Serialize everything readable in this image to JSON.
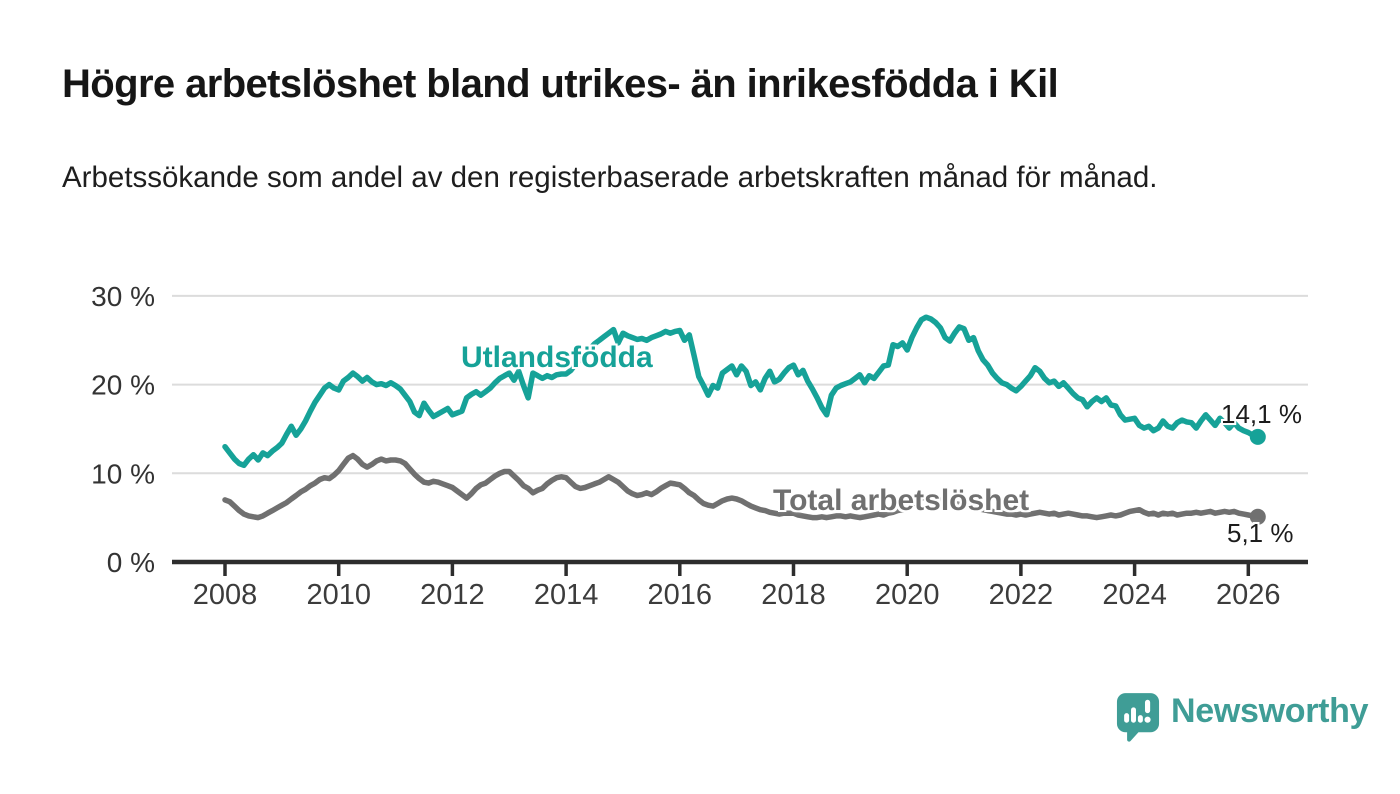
{
  "header": {
    "title": "Högre arbetslöshet bland utrikes- än inrikesfödda i Kil",
    "subtitle": "Arbetssökande som andel av den registerbaserade arbetskraften månad för månad."
  },
  "footer": {
    "brand": "Newsworthy",
    "brand_color": "#3f9d96"
  },
  "chart_data": {
    "type": "line",
    "frequency": "monthly",
    "x_start": "2008-01",
    "x_end": "2026-03",
    "grid": true,
    "x_axis": {
      "start_year": 2008,
      "tick_years": [
        2008,
        2010,
        2012,
        2014,
        2016,
        2018,
        2020,
        2022,
        2024,
        2026
      ]
    },
    "y_axis": {
      "min": 0,
      "max": 30,
      "unit": "%",
      "ticks": [
        {
          "value": 30,
          "label": "30 %"
        },
        {
          "value": 20,
          "label": "20 %"
        },
        {
          "value": 10,
          "label": "10 %"
        },
        {
          "value": 0,
          "label": "0 %"
        }
      ]
    },
    "series": [
      {
        "name": "Utlandsfödda",
        "color": "#16a298",
        "end_label": "14,1 %",
        "end_value": 14.1,
        "values": [
          13.0,
          12.3,
          11.6,
          11.1,
          10.9,
          11.6,
          12.1,
          11.5,
          12.3,
          12.0,
          12.5,
          12.9,
          13.4,
          14.4,
          15.3,
          14.3,
          15.0,
          15.9,
          17.0,
          18.0,
          18.8,
          19.6,
          20.0,
          19.6,
          19.4,
          20.4,
          20.8,
          21.3,
          20.9,
          20.4,
          20.8,
          20.3,
          20.0,
          20.1,
          19.9,
          20.2,
          19.9,
          19.5,
          18.8,
          18.1,
          16.9,
          16.5,
          17.9,
          17.1,
          16.4,
          16.7,
          17.0,
          17.3,
          16.6,
          16.8,
          17.0,
          18.5,
          18.9,
          19.2,
          18.8,
          19.2,
          19.6,
          20.2,
          20.7,
          21.0,
          21.3,
          20.5,
          21.5,
          19.9,
          18.5,
          21.3,
          21.0,
          20.7,
          21.0,
          20.8,
          21.1,
          21.2,
          21.2,
          21.6,
          22.3,
          22.9,
          23.5,
          24.0,
          24.6,
          25.0,
          25.4,
          25.8,
          26.2,
          24.7,
          25.8,
          25.5,
          25.3,
          25.1,
          25.2,
          25.0,
          25.3,
          25.5,
          25.7,
          26.0,
          25.8,
          26.0,
          26.1,
          25.0,
          25.6,
          23.3,
          20.9,
          19.9,
          18.8,
          19.9,
          19.6,
          21.3,
          21.7,
          22.1,
          21.1,
          22.1,
          21.5,
          19.9,
          20.3,
          19.4,
          20.7,
          21.5,
          20.3,
          20.6,
          21.3,
          21.9,
          22.2,
          21.1,
          21.6,
          20.4,
          19.5,
          18.5,
          17.4,
          16.6,
          18.8,
          19.6,
          19.9,
          20.1,
          20.3,
          20.7,
          21.1,
          20.2,
          21.0,
          20.7,
          21.4,
          22.1,
          22.2,
          24.5,
          24.3,
          24.7,
          23.9,
          25.3,
          26.4,
          27.3,
          27.6,
          27.4,
          27.0,
          26.4,
          25.3,
          24.9,
          25.8,
          26.5,
          26.3,
          25.0,
          25.3,
          23.8,
          22.8,
          22.2,
          21.3,
          20.7,
          20.2,
          20.0,
          19.6,
          19.3,
          19.8,
          20.4,
          21.0,
          21.9,
          21.5,
          20.7,
          20.2,
          20.4,
          19.8,
          20.2,
          19.6,
          19.0,
          18.5,
          18.3,
          17.5,
          18.1,
          18.5,
          18.1,
          18.5,
          17.7,
          17.6,
          16.6,
          16.0,
          16.1,
          16.2,
          15.4,
          15.1,
          15.3,
          14.8,
          15.1,
          15.9,
          15.3,
          15.1,
          15.7,
          16.0,
          15.8,
          15.7,
          15.1,
          15.9,
          16.6,
          16.0,
          15.4,
          16.2,
          15.7,
          15.1,
          15.7,
          15.1,
          14.8,
          14.6,
          14.3,
          14.1
        ]
      },
      {
        "name": "Total arbetslöshet",
        "color": "#707070",
        "end_label": "5,1 %",
        "end_value": 5.1,
        "values": [
          7.0,
          6.8,
          6.3,
          5.8,
          5.4,
          5.2,
          5.1,
          5.0,
          5.2,
          5.5,
          5.8,
          6.1,
          6.4,
          6.7,
          7.1,
          7.5,
          7.9,
          8.2,
          8.6,
          8.9,
          9.3,
          9.5,
          9.4,
          9.8,
          10.3,
          11.0,
          11.7,
          12.0,
          11.6,
          11.0,
          10.7,
          11.0,
          11.4,
          11.6,
          11.4,
          11.5,
          11.5,
          11.4,
          11.1,
          10.5,
          9.9,
          9.4,
          9.0,
          8.9,
          9.1,
          9.0,
          8.8,
          8.6,
          8.4,
          8.0,
          7.6,
          7.2,
          7.7,
          8.3,
          8.7,
          8.9,
          9.3,
          9.7,
          10.0,
          10.2,
          10.2,
          9.7,
          9.2,
          8.6,
          8.3,
          7.8,
          8.1,
          8.3,
          8.8,
          9.2,
          9.5,
          9.6,
          9.5,
          9.0,
          8.5,
          8.3,
          8.4,
          8.6,
          8.8,
          9.0,
          9.3,
          9.6,
          9.3,
          9.0,
          8.5,
          8.0,
          7.7,
          7.5,
          7.6,
          7.8,
          7.6,
          7.9,
          8.3,
          8.6,
          8.9,
          8.8,
          8.7,
          8.3,
          7.8,
          7.5,
          7.0,
          6.6,
          6.4,
          6.3,
          6.6,
          6.9,
          7.1,
          7.2,
          7.1,
          6.9,
          6.6,
          6.3,
          6.1,
          5.9,
          5.8,
          5.6,
          5.5,
          5.4,
          5.5,
          5.5,
          5.5,
          5.3,
          5.2,
          5.1,
          5.0,
          5.0,
          5.1,
          5.0,
          5.1,
          5.2,
          5.2,
          5.1,
          5.2,
          5.1,
          5.0,
          5.1,
          5.2,
          5.3,
          5.4,
          5.3,
          5.5,
          5.6,
          5.8,
          5.9,
          6.1,
          6.4,
          6.9,
          7.2,
          7.3,
          7.2,
          7.1,
          7.0,
          6.9,
          6.7,
          6.6,
          6.5,
          6.4,
          6.3,
          6.1,
          6.0,
          5.9,
          5.8,
          5.7,
          5.6,
          5.5,
          5.4,
          5.4,
          5.3,
          5.4,
          5.3,
          5.4,
          5.5,
          5.6,
          5.5,
          5.4,
          5.5,
          5.3,
          5.4,
          5.5,
          5.4,
          5.3,
          5.2,
          5.2,
          5.1,
          5.0,
          5.1,
          5.2,
          5.3,
          5.2,
          5.3,
          5.5,
          5.7,
          5.8,
          5.9,
          5.6,
          5.4,
          5.5,
          5.3,
          5.5,
          5.4,
          5.5,
          5.3,
          5.4,
          5.5,
          5.5,
          5.6,
          5.5,
          5.6,
          5.7,
          5.5,
          5.6,
          5.7,
          5.6,
          5.7,
          5.5,
          5.4,
          5.3,
          5.2,
          5.1
        ]
      }
    ],
    "style": {
      "grid_color": "#dcdcdc",
      "axis_color": "#2d2d2d",
      "tick_label_color": "#3c3c3c",
      "y_label_color": "#333333",
      "line_width": 5.5,
      "end_dot_radius": 8
    }
  }
}
